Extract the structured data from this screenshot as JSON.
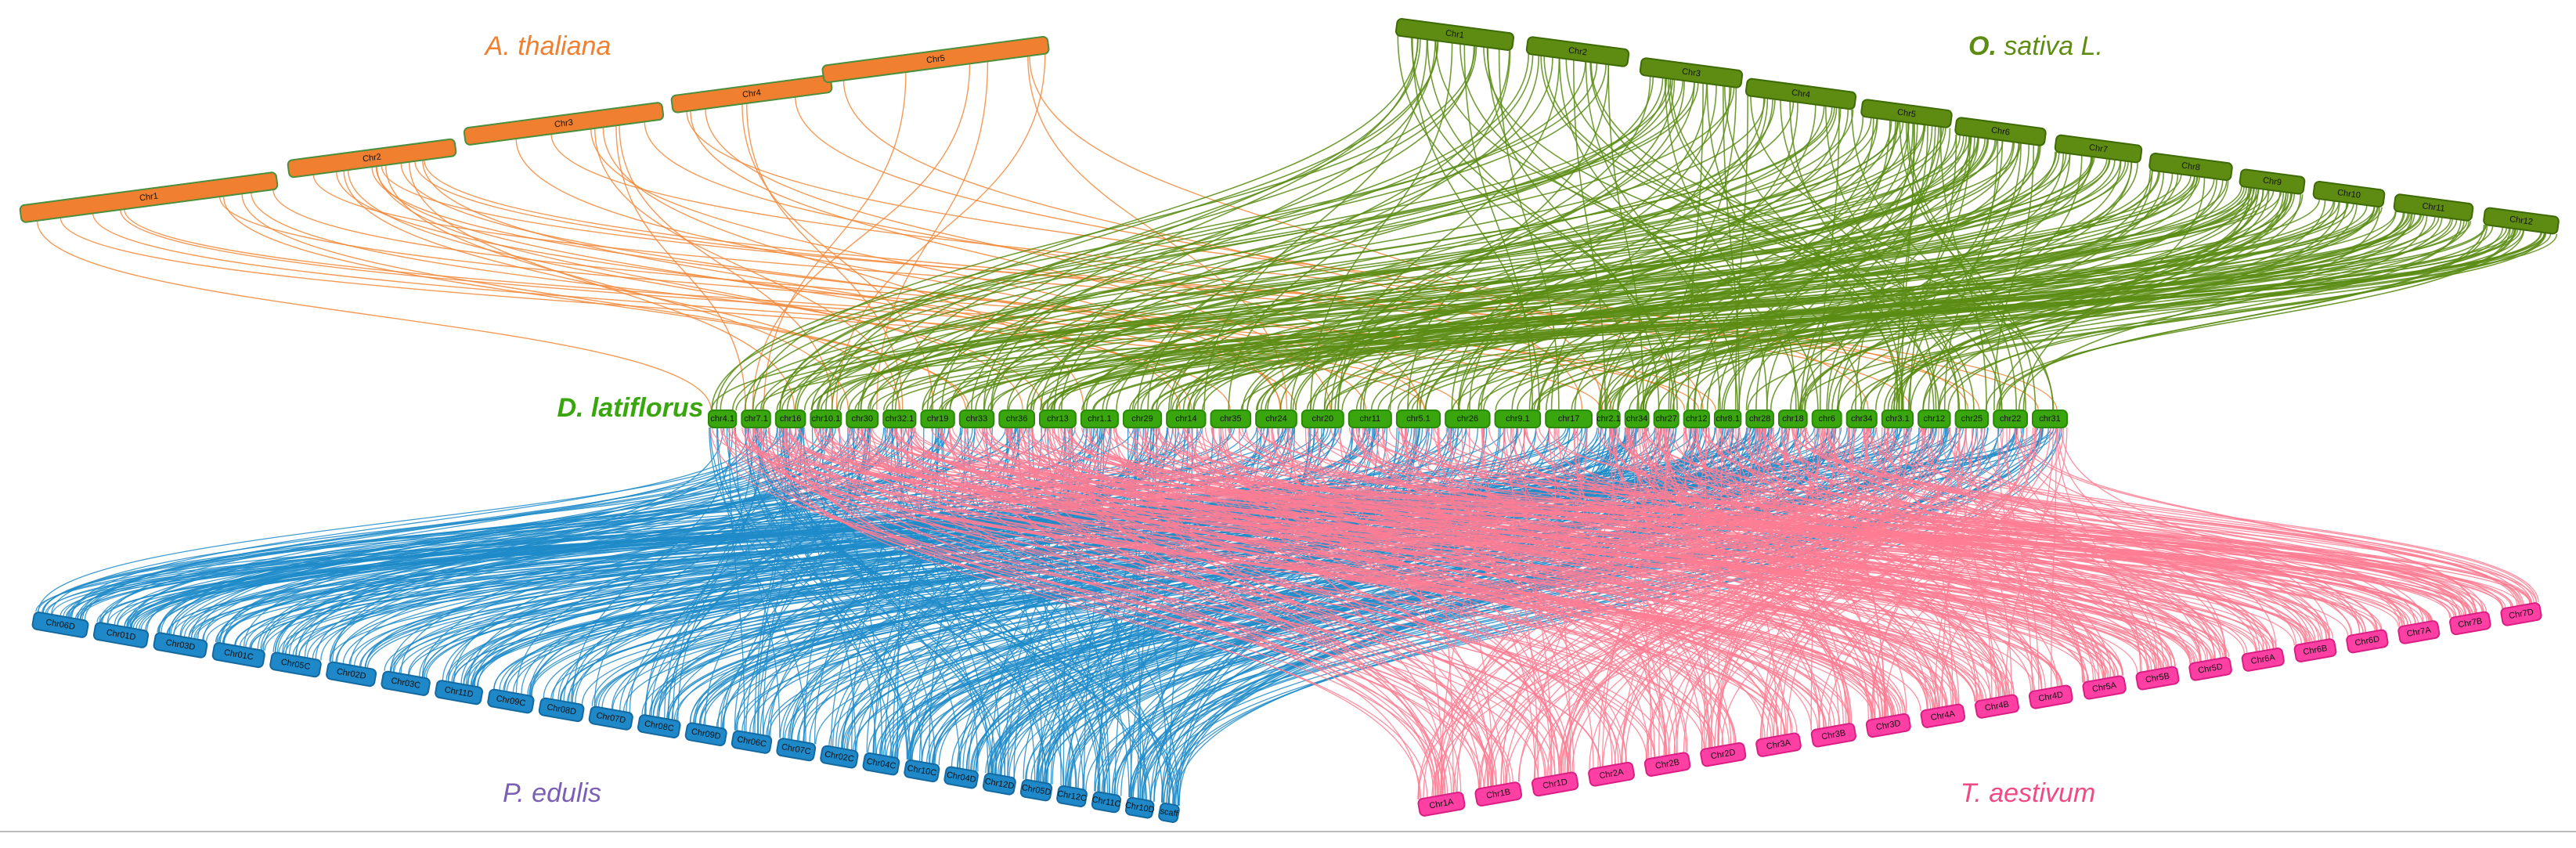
{
  "species": {
    "arabidopsis": {
      "label": "A. thaliana",
      "color": "#f07f2f",
      "border": "#4c8f3c"
    },
    "rice": {
      "label_bold": "O.",
      "label_rest": " sativa L.",
      "color": "#5e8c12",
      "border": "#3e6b05"
    },
    "bamboo": {
      "label": "D. latiflorus",
      "color": "#3aa60e",
      "border": "#2a8a06"
    },
    "moso": {
      "label": "P. edulis",
      "color": "#1e88c8",
      "label_color": "#7b5fb5",
      "border": "#146aa0"
    },
    "wheat": {
      "label": "T. aestivum",
      "color": "#ff3fa4",
      "label_color": "#f04a85",
      "border": "#d81f83"
    }
  },
  "link_colors": {
    "arabidopsis": "#f2883a",
    "rice": "#5b8c14",
    "moso": "#1e8bc9",
    "wheat": "#ff7c93"
  },
  "chromosomes": {
    "arabidopsis": [
      "Chr1",
      "Chr2",
      "Chr3",
      "Chr4",
      "Chr5"
    ],
    "rice": [
      "Chr1",
      "Chr2",
      "Chr3",
      "Chr4",
      "Chr5",
      "Chr6",
      "Chr7",
      "Chr8",
      "Chr9",
      "Chr10",
      "Chr11",
      "Chr12"
    ],
    "bamboo": [
      "chr4.1",
      "chr7.1",
      "chr16",
      "chr10.1",
      "chr30",
      "chr32.1",
      "chr19",
      "chr33",
      "chr36",
      "chr13",
      "chr1.1",
      "chr29",
      "chr14",
      "chr35",
      "chr24",
      "chr20",
      "chr11",
      "chr5.1",
      "chr26",
      "chr9.1",
      "chr17",
      "chr2.1",
      "chr34",
      "chr27",
      "chr12",
      "chr8.1",
      "chr28",
      "chr18",
      "chr6",
      "chr34",
      "chr3.1",
      "chr12",
      "chr25",
      "chr22",
      "chr31"
    ],
    "moso": [
      "Chr06D",
      "Chr01D",
      "Chr03D",
      "Chr01C",
      "Chr05C",
      "Chr02D",
      "Chr03C",
      "Chr11D",
      "Chr09C",
      "Chr08D",
      "Chr07D",
      "Chr08C",
      "Chr09D",
      "Chr06C",
      "Chr07C",
      "Chr02C",
      "Chr04C",
      "Chr10C",
      "Chr04D",
      "Chr12D",
      "Chr05D",
      "Chr12C",
      "Chr11C",
      "Chr10D",
      "scaff"
    ],
    "wheat": [
      "Chr1A",
      "Chr1B",
      "Chr1D",
      "Chr2A",
      "Chr2B",
      "Chr2D",
      "Chr3A",
      "Chr3B",
      "Chr3D",
      "Chr4A",
      "Chr4B",
      "Chr4D",
      "Chr5A",
      "Chr5B",
      "Chr5D",
      "Chr6A",
      "Chr6B",
      "Chr6D",
      "Chr7A",
      "Chr7B",
      "Chr7D"
    ]
  }
}
